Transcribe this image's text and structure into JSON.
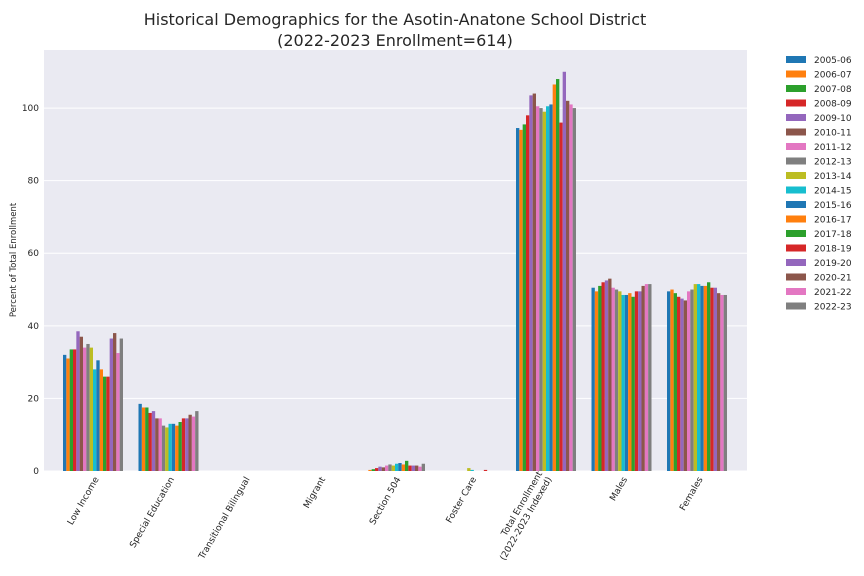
{
  "chart_data": {
    "type": "bar",
    "title_line1": "Historical Demographics for the Asotin-Anatone School District",
    "title_line2": "(2022-2023 Enrollment=614)",
    "ylabel": "Percent of Total Enrollment",
    "xlabel": "",
    "ylim": [
      0,
      116
    ],
    "yticks": [
      0,
      20,
      40,
      60,
      80,
      100
    ],
    "grid": true,
    "legend_position": "outside-right",
    "categories": [
      [
        "Low Income"
      ],
      [
        "Special Education"
      ],
      [
        "Transitional Bilingual"
      ],
      [
        "Migrant"
      ],
      [
        "Section 504"
      ],
      [
        "Foster Care"
      ],
      [
        "Total Enrollment",
        "(2022-2023 Indexed)"
      ],
      [
        "Males"
      ],
      [
        "Females"
      ]
    ],
    "series": [
      {
        "name": "2005-06",
        "color": "#1f77b4",
        "values": [
          32.0,
          18.5,
          0,
          0,
          0.0,
          0.0,
          94.5,
          50.5,
          49.5
        ]
      },
      {
        "name": "2006-07",
        "color": "#ff7f0e",
        "values": [
          31.0,
          17.5,
          0,
          0,
          0.3,
          0.0,
          94.0,
          49.5,
          50.0
        ]
      },
      {
        "name": "2007-08",
        "color": "#2ca02c",
        "values": [
          33.5,
          17.5,
          0,
          0,
          0.5,
          0.0,
          95.5,
          51.0,
          49.0
        ]
      },
      {
        "name": "2008-09",
        "color": "#d62728",
        "values": [
          33.5,
          16.0,
          0,
          0,
          0.8,
          0.0,
          98.0,
          52.0,
          48.0
        ]
      },
      {
        "name": "2009-10",
        "color": "#9467bd",
        "values": [
          38.5,
          16.5,
          0,
          0,
          1.2,
          0.0,
          103.5,
          52.5,
          47.5
        ]
      },
      {
        "name": "2010-11",
        "color": "#8c564b",
        "values": [
          37.0,
          14.5,
          0,
          0,
          1.0,
          0.0,
          104.0,
          53.0,
          47.0
        ]
      },
      {
        "name": "2011-12",
        "color": "#e377c2",
        "values": [
          34.0,
          14.5,
          0,
          0,
          1.5,
          0.0,
          100.5,
          50.5,
          49.5
        ]
      },
      {
        "name": "2012-13",
        "color": "#7f7f7f",
        "values": [
          35.0,
          12.5,
          0,
          0,
          1.8,
          0.0,
          100.0,
          50.0,
          50.0
        ]
      },
      {
        "name": "2013-14",
        "color": "#bcbd22",
        "values": [
          34.0,
          12.0,
          0,
          0,
          1.5,
          0.8,
          99.0,
          49.5,
          51.5
        ]
      },
      {
        "name": "2014-15",
        "color": "#17becf",
        "values": [
          28.0,
          13.0,
          0,
          0,
          2.0,
          0.3,
          100.5,
          48.5,
          51.5
        ]
      },
      {
        "name": "2015-16",
        "color": "#1f77b4",
        "values": [
          30.5,
          13.0,
          0,
          0,
          2.2,
          0.0,
          101.0,
          48.5,
          51.0
        ]
      },
      {
        "name": "2016-17",
        "color": "#ff7f0e",
        "values": [
          28.0,
          12.5,
          0,
          0,
          1.8,
          0.0,
          106.5,
          49.0,
          51.0
        ]
      },
      {
        "name": "2017-18",
        "color": "#2ca02c",
        "values": [
          26.0,
          13.5,
          0,
          0,
          2.8,
          0.0,
          108.0,
          48.0,
          52.0
        ]
      },
      {
        "name": "2018-19",
        "color": "#d62728",
        "values": [
          26.0,
          14.5,
          0,
          0,
          1.5,
          0.3,
          96.0,
          49.5,
          50.5
        ]
      },
      {
        "name": "2019-20",
        "color": "#9467bd",
        "values": [
          36.5,
          14.5,
          0,
          0,
          1.5,
          0.0,
          110.0,
          49.5,
          50.5
        ]
      },
      {
        "name": "2020-21",
        "color": "#8c564b",
        "values": [
          38.0,
          15.5,
          0,
          0,
          1.5,
          0.0,
          102.0,
          51.0,
          49.0
        ]
      },
      {
        "name": "2021-22",
        "color": "#e377c2",
        "values": [
          32.5,
          15.0,
          0,
          0,
          1.2,
          0.0,
          101.0,
          51.5,
          48.5
        ]
      },
      {
        "name": "2022-23",
        "color": "#7f7f7f",
        "values": [
          36.5,
          16.5,
          0,
          0,
          2.0,
          0.0,
          100.0,
          51.5,
          48.5
        ]
      }
    ]
  }
}
